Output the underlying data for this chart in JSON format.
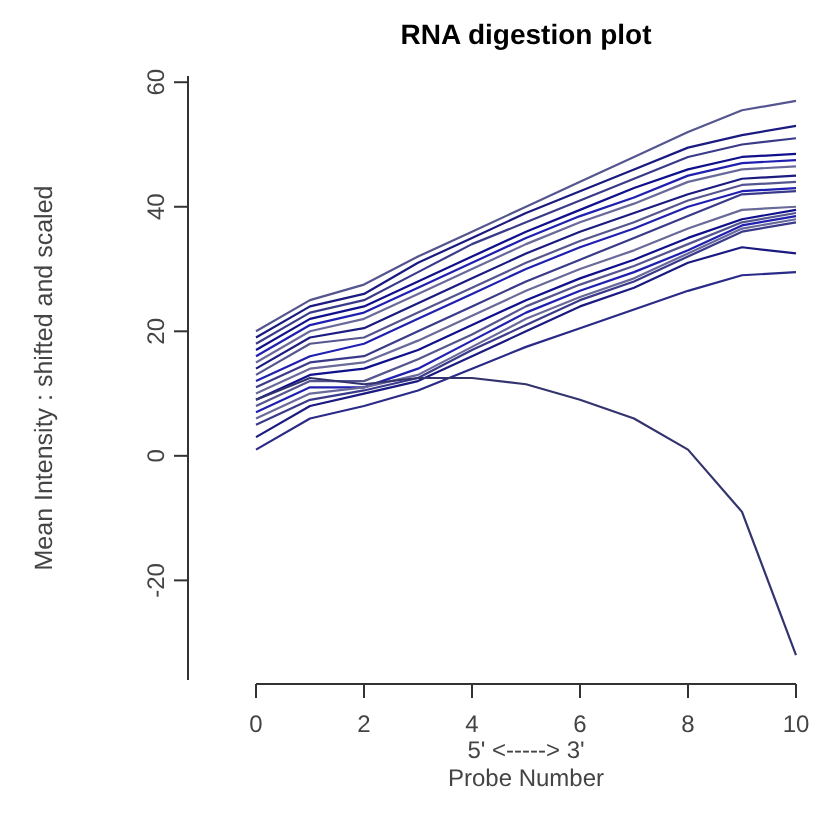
{
  "chart_data": {
    "type": "line",
    "title": "RNA digestion plot",
    "xlabel": "5' <-----> 3'\nProbe Number",
    "ylabel": "Mean Intensity : shifted and scaled",
    "x": [
      0,
      1,
      2,
      3,
      4,
      5,
      6,
      7,
      8,
      9,
      10
    ],
    "xlim": [
      0,
      10
    ],
    "xticks": [
      0,
      2,
      4,
      6,
      8,
      10
    ],
    "ylim": [
      -36,
      61
    ],
    "yticks": [
      -20,
      0,
      20,
      40,
      60
    ],
    "grid": false,
    "marker": "none",
    "line_style": "solid",
    "series": [
      {
        "color": "#55558f",
        "values": [
          20,
          25,
          27.5,
          32,
          36,
          40,
          44,
          48,
          52,
          55.5,
          57
        ]
      },
      {
        "color": "#1a1a80",
        "values": [
          19,
          24,
          26,
          31,
          35,
          39,
          42.5,
          46,
          49.5,
          51.5,
          53
        ]
      },
      {
        "color": "#3a3a8a",
        "values": [
          18,
          23,
          25,
          29.5,
          34,
          37.5,
          41,
          44.5,
          48,
          50,
          51
        ]
      },
      {
        "color": "#10108c",
        "values": [
          17,
          22,
          24,
          28,
          32,
          36,
          39.5,
          43,
          46,
          48,
          48.5
        ]
      },
      {
        "color": "#2020b0",
        "values": [
          16,
          21,
          23,
          27,
          31,
          35,
          38.5,
          41.5,
          45,
          47,
          47.5
        ]
      },
      {
        "color": "#6a6a9a",
        "values": [
          15,
          20,
          22,
          26,
          30,
          34,
          37.5,
          40.5,
          44,
          46,
          46.5
        ]
      },
      {
        "color": "#1a1a80",
        "values": [
          14,
          19,
          20.5,
          24.5,
          28.5,
          32.5,
          36,
          39,
          42,
          44.5,
          45
        ]
      },
      {
        "color": "#55558f",
        "values": [
          13,
          18,
          19,
          23,
          27,
          31,
          34.5,
          37.5,
          41,
          43.5,
          44
        ]
      },
      {
        "color": "#2020b0",
        "values": [
          12,
          16,
          18,
          22,
          26,
          30,
          33.5,
          36.5,
          40,
          42.5,
          43
        ]
      },
      {
        "color": "#3a3a8a",
        "values": [
          11,
          15,
          16,
          20,
          24,
          28,
          31.5,
          35,
          38.5,
          42,
          42.5
        ]
      },
      {
        "color": "#6a6a9a",
        "values": [
          10,
          14,
          15,
          18.5,
          22.5,
          26.5,
          30,
          33,
          36.5,
          39.5,
          40
        ]
      },
      {
        "color": "#10108c",
        "values": [
          9,
          13,
          14,
          17,
          21,
          25,
          28.5,
          31.5,
          35,
          38,
          39.5
        ]
      },
      {
        "color": "#55558f",
        "values": [
          8,
          12,
          12,
          15.5,
          19.5,
          24,
          27.5,
          30.5,
          34,
          37.5,
          39
        ]
      },
      {
        "color": "#2020b0",
        "values": [
          7,
          11,
          11,
          14,
          18.5,
          23,
          26.5,
          29.5,
          33,
          37,
          38.5
        ]
      },
      {
        "color": "#6a6a9a",
        "values": [
          6,
          10,
          11,
          13,
          17.5,
          22,
          25.5,
          28.5,
          32.5,
          36.5,
          38
        ]
      },
      {
        "color": "#3a3a8a",
        "values": [
          5,
          9,
          10.5,
          12.5,
          17,
          21,
          25,
          28,
          32,
          36,
          37.5
        ]
      },
      {
        "color": "#1a1a80",
        "values": [
          3,
          8,
          10,
          12,
          16,
          20,
          24,
          27,
          31,
          33.5,
          32.5
        ]
      },
      {
        "color": "#2a2a88",
        "values": [
          1,
          6,
          8,
          10.5,
          14,
          17.5,
          20.5,
          23.5,
          26.5,
          29,
          29.5
        ]
      },
      {
        "color": "#33336e",
        "values": [
          9,
          12.5,
          11.5,
          12.5,
          12.5,
          11.5,
          9,
          6,
          1,
          -9,
          -32
        ]
      }
    ]
  }
}
